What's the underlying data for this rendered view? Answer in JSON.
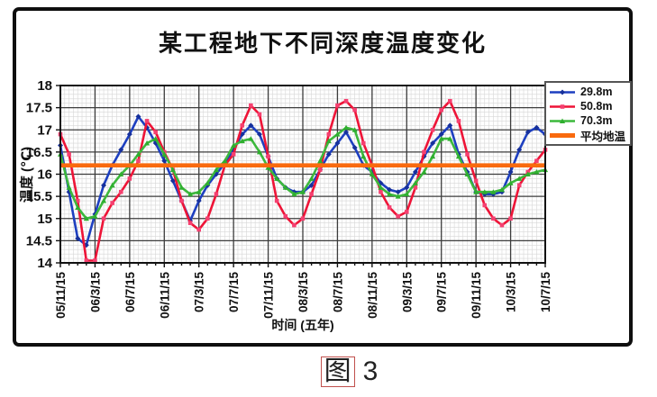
{
  "figure": {
    "title": "某工程地下不同深度温度变化",
    "caption_fig": "图",
    "caption_num": "3"
  },
  "chart_data": {
    "type": "line",
    "title": "某工程地下不同深度温度变化",
    "xlabel": "时间 (五年)",
    "ylabel": "温度 (℃)",
    "ylim": [
      14,
      18
    ],
    "y_tick_step": 0.5,
    "y_tick_labels": [
      "14",
      "14.5",
      "15",
      "15.5",
      "16",
      "16.5",
      "17",
      "17.5",
      "18"
    ],
    "x_tick_labels": [
      "05/11/15",
      "06/3/15",
      "06/7/15",
      "06/11/15",
      "07/3/15",
      "07/7/15",
      "07/11/15",
      "08/3/15",
      "08/7/15",
      "08/11/15",
      "09/3/15",
      "09/7/15",
      "09/11/15",
      "10/3/15",
      "10/7/15"
    ],
    "x_ticks_every_n_points": 4,
    "points_per_series": 57,
    "grid": "major+minor",
    "legend_position": "top-right-outside",
    "series": [
      {
        "name": "29.8m",
        "color": "#1d3fc0",
        "marker": "diamond",
        "marker_color": "#16309b",
        "values": [
          16.65,
          15.6,
          14.55,
          14.4,
          15.1,
          15.75,
          16.2,
          16.55,
          16.9,
          17.3,
          17.05,
          16.7,
          16.3,
          15.85,
          15.4,
          14.95,
          15.4,
          15.75,
          16.0,
          16.25,
          16.55,
          16.9,
          17.1,
          16.9,
          16.4,
          15.9,
          15.7,
          15.6,
          15.6,
          15.75,
          16.1,
          16.45,
          16.7,
          16.95,
          16.6,
          16.2,
          16.05,
          15.8,
          15.65,
          15.6,
          15.7,
          16.05,
          16.4,
          16.7,
          16.9,
          17.1,
          16.45,
          16.05,
          15.6,
          15.55,
          15.55,
          15.6,
          16.05,
          16.55,
          16.95,
          17.05,
          16.9
        ]
      },
      {
        "name": "50.8m",
        "color": "#ee1437",
        "marker": "square",
        "marker_color": "#f54070",
        "values": [
          16.9,
          16.45,
          15.4,
          14.05,
          14.05,
          15.0,
          15.35,
          15.6,
          15.9,
          16.3,
          17.2,
          16.95,
          16.5,
          16.1,
          15.4,
          14.9,
          14.75,
          15.0,
          15.55,
          16.2,
          16.45,
          17.1,
          17.55,
          17.35,
          16.4,
          15.4,
          15.05,
          14.85,
          15.0,
          15.55,
          16.1,
          16.9,
          17.55,
          17.65,
          17.45,
          16.7,
          16.2,
          15.6,
          15.25,
          15.05,
          15.15,
          15.7,
          16.5,
          17.0,
          17.45,
          17.65,
          17.2,
          16.45,
          15.85,
          15.3,
          15.0,
          14.85,
          15.0,
          15.75,
          16.05,
          16.3,
          16.55
        ]
      },
      {
        "name": "70.3m",
        "color": "#3cb83c",
        "marker": "triangle",
        "marker_color": "#2fae2f",
        "values": [
          16.45,
          15.7,
          15.25,
          15.0,
          15.05,
          15.4,
          15.75,
          16.0,
          16.2,
          16.45,
          16.7,
          16.8,
          16.45,
          16.1,
          15.7,
          15.55,
          15.6,
          15.8,
          16.1,
          16.3,
          16.65,
          16.75,
          16.8,
          16.5,
          16.15,
          15.9,
          15.7,
          15.55,
          15.6,
          15.9,
          16.3,
          16.75,
          16.9,
          17.05,
          17.0,
          16.4,
          16.0,
          15.7,
          15.55,
          15.5,
          15.55,
          15.8,
          16.05,
          16.4,
          16.8,
          16.8,
          16.4,
          16.0,
          15.6,
          15.6,
          15.6,
          15.65,
          15.8,
          15.9,
          16.0,
          16.05,
          16.1
        ]
      },
      {
        "name": "平均地温",
        "color": "#f96a0e",
        "type": "constant",
        "marker": "none",
        "value": 16.2
      }
    ]
  }
}
